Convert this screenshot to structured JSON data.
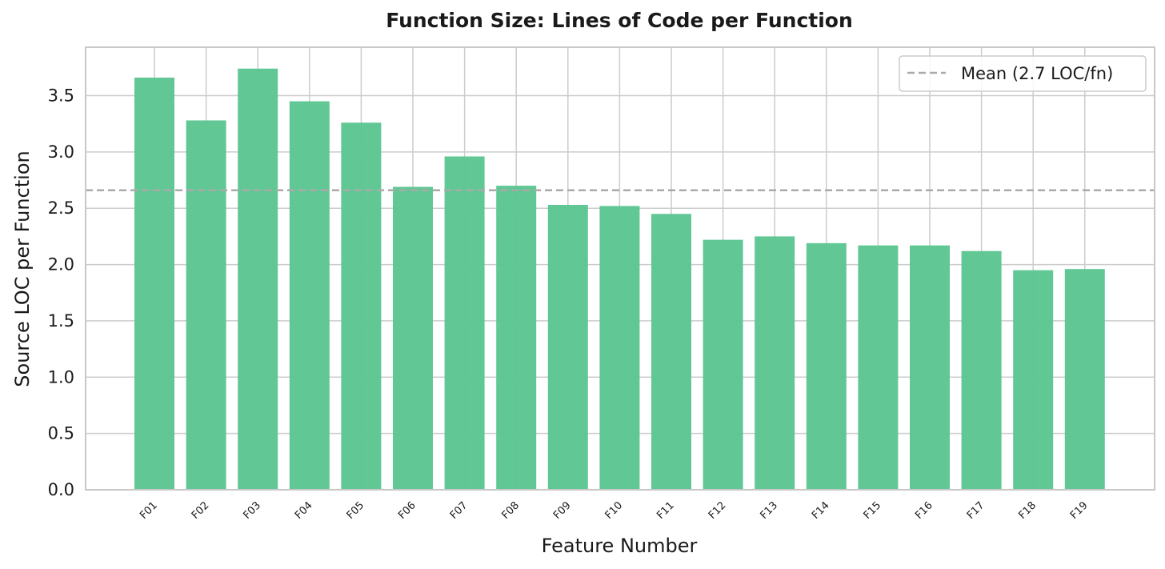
{
  "chart_data": {
    "type": "bar",
    "title": "Function Size: Lines of Code per Function",
    "xlabel": "Feature Number",
    "ylabel": "Source LOC per Function",
    "categories": [
      "F01",
      "F02",
      "F03",
      "F04",
      "F05",
      "F06",
      "F07",
      "F08",
      "F09",
      "F10",
      "F11",
      "F12",
      "F13",
      "F14",
      "F15",
      "F16",
      "F17",
      "F18",
      "F19"
    ],
    "values": [
      3.66,
      3.28,
      3.74,
      3.45,
      3.26,
      2.69,
      2.96,
      2.7,
      2.53,
      2.52,
      2.45,
      2.22,
      2.25,
      2.19,
      2.17,
      2.17,
      2.12,
      1.95,
      1.96
    ],
    "ylim": [
      0,
      3.93
    ],
    "yticks": [
      "0.0",
      "0.5",
      "1.0",
      "1.5",
      "2.0",
      "2.5",
      "3.0",
      "3.5"
    ],
    "mean_line": {
      "value": 2.66,
      "label": "Mean (2.7 LOC/fn)"
    },
    "grid": true,
    "legend": "top-right",
    "colors": {
      "bar": "#5cc592",
      "mean_line": "#aaaaaa",
      "grid": "#cccccc",
      "axes": "#c8c8c8"
    }
  }
}
